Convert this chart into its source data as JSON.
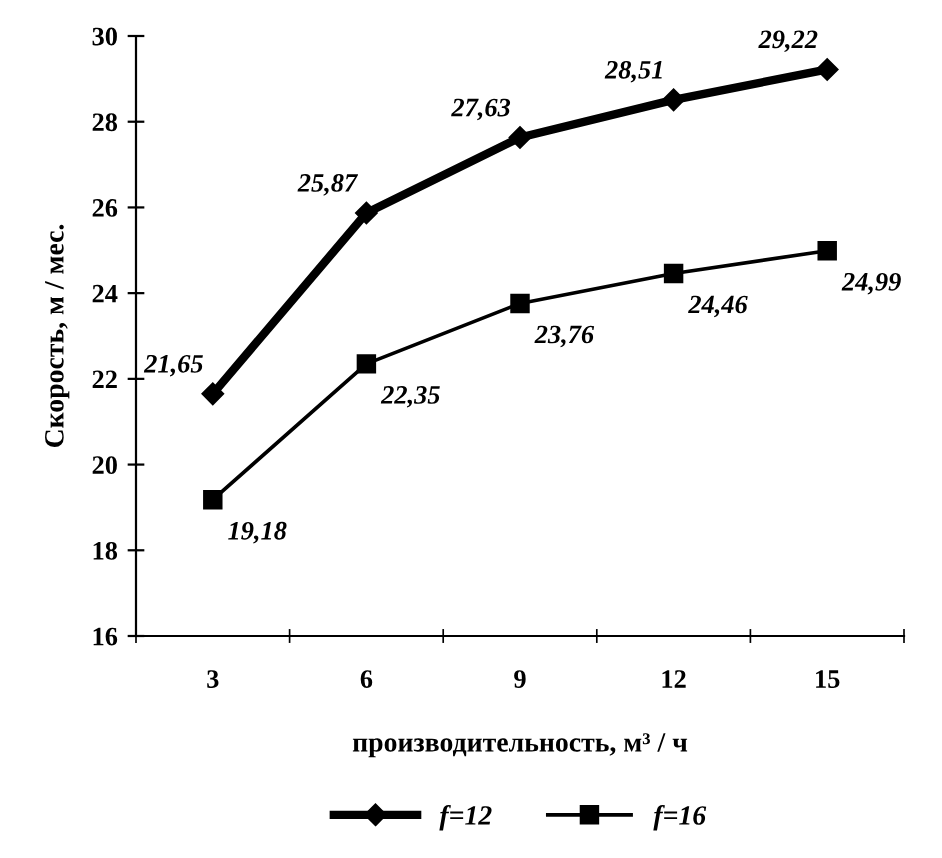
{
  "chart_data": {
    "type": "line",
    "xlabel": "производительность, м³ / ч",
    "ylabel": "Скорость, м / мес.",
    "categories": [
      "3",
      "6",
      "9",
      "12",
      "15"
    ],
    "ylim": [
      16,
      30
    ],
    "yticks": [
      16,
      18,
      20,
      22,
      24,
      26,
      28,
      30
    ],
    "grid": false,
    "legend": "bottom",
    "line_style": "solid",
    "series": [
      {
        "name": "f=12",
        "color": "#000000",
        "marker": "diamond",
        "values": [
          21.65,
          25.87,
          27.63,
          28.51,
          29.22
        ],
        "value_labels": [
          "21,65",
          "25,87",
          "27,63",
          "28,51",
          "29,22"
        ]
      },
      {
        "name": "f=16",
        "color": "#000000",
        "marker": "square",
        "values": [
          19.18,
          22.35,
          23.76,
          24.46,
          24.99
        ],
        "value_labels": [
          "19,18",
          "22,35",
          "23,76",
          "24,46",
          "24,99"
        ]
      }
    ]
  }
}
